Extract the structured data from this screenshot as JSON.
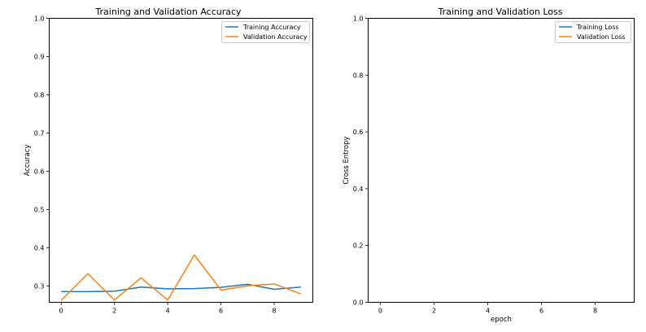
{
  "chart_data": [
    {
      "type": "line",
      "title": "Training and Validation Accuracy",
      "xlabel": "",
      "ylabel": "Accuracy",
      "xlim": [
        -0.45,
        9.45
      ],
      "ylim": [
        0.257,
        1.0
      ],
      "xticks": [
        "0",
        "2",
        "4",
        "6",
        "8"
      ],
      "xtick_values": [
        0,
        2,
        4,
        6,
        8
      ],
      "yticks": [
        "0.3",
        "0.4",
        "0.5",
        "0.6",
        "0.7",
        "0.8",
        "0.9",
        "1.0"
      ],
      "ytick_values": [
        0.3,
        0.4,
        0.5,
        0.6,
        0.7,
        0.8,
        0.9,
        1.0
      ],
      "grid": false,
      "legend_position": "top-right",
      "x": [
        0,
        1,
        2,
        3,
        4,
        5,
        6,
        7,
        8,
        9
      ],
      "series": [
        {
          "name": "Training Accuracy",
          "color": "#1f77b4",
          "values": [
            0.285,
            0.285,
            0.286,
            0.297,
            0.292,
            0.293,
            0.296,
            0.304,
            0.291,
            0.297
          ]
        },
        {
          "name": "Validation Accuracy",
          "color": "#ff7f0e",
          "values": [
            0.262,
            0.332,
            0.263,
            0.321,
            0.263,
            0.381,
            0.289,
            0.3,
            0.305,
            0.279
          ]
        }
      ]
    },
    {
      "type": "line",
      "title": "Training and Validation Loss",
      "xlabel": "epoch",
      "ylabel": "Cross Entropy",
      "xlim": [
        -0.45,
        9.45
      ],
      "ylim": [
        0.0,
        1.0
      ],
      "xticks": [
        "0",
        "2",
        "4",
        "6",
        "8"
      ],
      "xtick_values": [
        0,
        2,
        4,
        6,
        8
      ],
      "yticks": [
        "0.0",
        "0.2",
        "0.4",
        "0.6",
        "0.8",
        "1.0"
      ],
      "ytick_values": [
        0.0,
        0.2,
        0.4,
        0.6,
        0.8,
        1.0
      ],
      "grid": false,
      "legend_position": "top-right",
      "x": [],
      "series": [
        {
          "name": "Training Loss",
          "color": "#1f77b4",
          "values": []
        },
        {
          "name": "Validation Loss",
          "color": "#ff7f0e",
          "values": []
        }
      ]
    }
  ]
}
